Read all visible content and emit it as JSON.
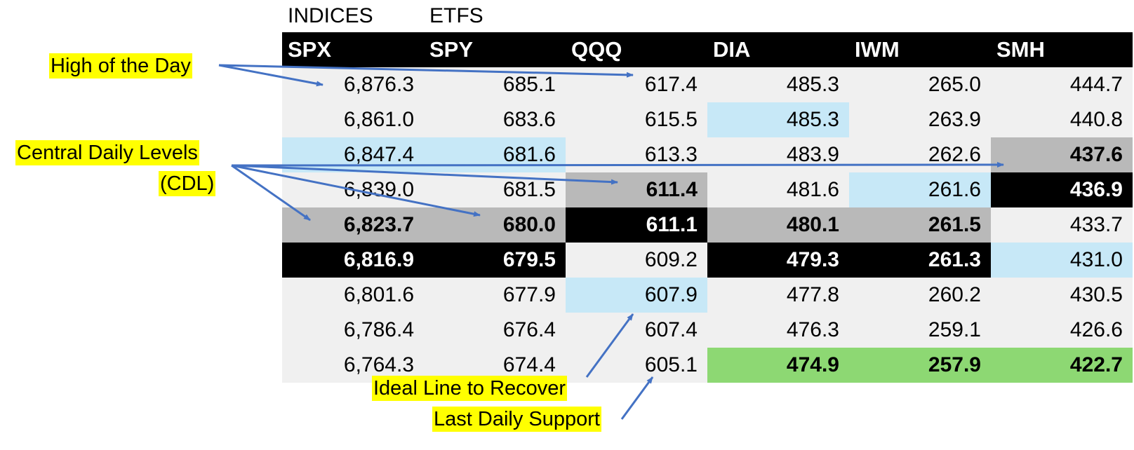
{
  "labels": {
    "indices": "INDICES",
    "etfs": "ETFS"
  },
  "table": {
    "headers": [
      "SPX",
      "SPY",
      "QQQ",
      "DIA",
      "IWM",
      "SMH"
    ],
    "rows": [
      [
        "6,876.3",
        "685.1",
        "617.4",
        "485.3",
        "265.0",
        "444.7"
      ],
      [
        "6,861.0",
        "683.6",
        "615.5",
        "485.3",
        "263.9",
        "440.8"
      ],
      [
        "6,847.4",
        "681.6",
        "613.3",
        "483.9",
        "262.6",
        "437.6"
      ],
      [
        "6,839.0",
        "681.5",
        "611.4",
        "481.6",
        "261.6",
        "436.9"
      ],
      [
        "6,823.7",
        "680.0",
        "611.1",
        "480.1",
        "261.5",
        "433.7"
      ],
      [
        "6,816.9",
        "679.5",
        "609.2",
        "479.3",
        "261.3",
        "431.0"
      ],
      [
        "6,801.6",
        "677.9",
        "607.9",
        "477.8",
        "260.2",
        "430.5"
      ],
      [
        "6,786.4",
        "676.4",
        "607.4",
        "476.3",
        "259.1",
        "426.6"
      ],
      [
        "6,764.3",
        "674.4",
        "605.1",
        "474.9",
        "257.9",
        "422.7"
      ]
    ],
    "styles": [
      [
        "",
        "",
        "",
        "",
        "",
        ""
      ],
      [
        "",
        "",
        "",
        "light",
        "",
        ""
      ],
      [
        "light",
        "light",
        "",
        "",
        "",
        "gray"
      ],
      [
        "",
        "",
        "gray",
        "",
        "light",
        "black"
      ],
      [
        "gray",
        "gray",
        "black",
        "gray",
        "gray",
        ""
      ],
      [
        "black",
        "black",
        "",
        "black",
        "black",
        "light"
      ],
      [
        "",
        "",
        "light",
        "",
        "",
        ""
      ],
      [
        "",
        "",
        "",
        "",
        "",
        ""
      ],
      [
        "",
        "",
        "",
        "green",
        "green",
        "green"
      ]
    ],
    "colors": {
      "light": "#c7e8f7",
      "gray": "#b9b9b9",
      "black": "#000000",
      "green": "#8dd873",
      "base": "#f0f0f0",
      "highlight": "#ffff00",
      "arrow": "#4472c4"
    }
  },
  "annotations": {
    "high": "High of the Day",
    "cdl_line1": "Central Daily Levels",
    "cdl_line2": "(CDL)",
    "ideal": "Ideal Line to Recover",
    "support": "Last Daily Support"
  }
}
